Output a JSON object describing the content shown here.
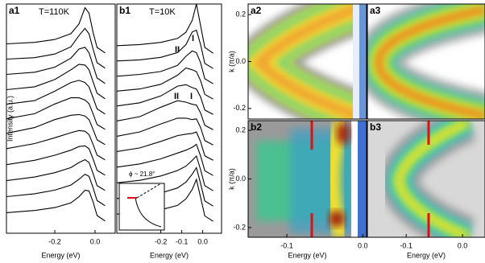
{
  "chart_data": [
    {
      "type": "line",
      "panel": "a1",
      "annotation": "T=110K",
      "annotation_color": "#e0201b",
      "color": "#000000",
      "xlabel": "Energy (eV)",
      "ylabel": "Intensity (a.u.)",
      "xlim": [
        -0.44,
        0.1
      ],
      "xticks": [
        -0.2,
        {
          "value": 0,
          "label": "0.0"
        }
      ],
      "x": [
        -0.44,
        -0.3,
        -0.2,
        -0.12,
        -0.08,
        -0.05,
        -0.03,
        -0.01,
        0.01,
        0.05
      ],
      "series": [
        {
          "values": [
            0.3,
            0.34,
            0.42,
            0.58,
            0.85,
            1.3,
            1.15,
            0.62,
            0.2,
            0.05
          ]
        },
        {
          "values": [
            0.3,
            0.34,
            0.44,
            0.64,
            0.95,
            1.15,
            1.0,
            0.58,
            0.2,
            0.05
          ]
        },
        {
          "values": [
            0.3,
            0.36,
            0.5,
            0.75,
            1.0,
            1.05,
            0.9,
            0.55,
            0.2,
            0.05
          ]
        },
        {
          "values": [
            0.3,
            0.38,
            0.58,
            0.85,
            1.0,
            0.98,
            0.85,
            0.52,
            0.2,
            0.05
          ]
        },
        {
          "values": [
            0.32,
            0.42,
            0.68,
            0.92,
            0.98,
            0.92,
            0.8,
            0.5,
            0.19,
            0.05
          ]
        },
        {
          "values": [
            0.34,
            0.48,
            0.75,
            0.92,
            0.92,
            0.86,
            0.76,
            0.48,
            0.18,
            0.05
          ]
        },
        {
          "values": [
            0.36,
            0.52,
            0.74,
            0.86,
            0.88,
            0.84,
            0.74,
            0.47,
            0.18,
            0.05
          ]
        },
        {
          "values": [
            0.36,
            0.5,
            0.66,
            0.8,
            0.86,
            0.84,
            0.75,
            0.48,
            0.18,
            0.05
          ]
        },
        {
          "values": [
            0.34,
            0.46,
            0.6,
            0.74,
            0.84,
            0.86,
            0.78,
            0.5,
            0.18,
            0.05
          ]
        },
        {
          "values": [
            0.32,
            0.42,
            0.54,
            0.68,
            0.82,
            0.9,
            0.82,
            0.52,
            0.18,
            0.05
          ]
        },
        {
          "values": [
            0.3,
            0.38,
            0.48,
            0.62,
            0.78,
            0.92,
            0.86,
            0.55,
            0.19,
            0.05
          ]
        },
        {
          "values": [
            0.28,
            0.34,
            0.42,
            0.55,
            0.72,
            0.9,
            0.88,
            0.58,
            0.2,
            0.05
          ]
        }
      ]
    },
    {
      "type": "line",
      "panel": "b1",
      "annotation": "T=10K",
      "annotation_color": "#2030d0",
      "color": "#000000",
      "xlabel": "Energy (eV)",
      "xlim": [
        -0.41,
        0.09
      ],
      "xticks": [
        -0.2,
        -0.1,
        {
          "value": 0,
          "label": "0.0"
        }
      ],
      "x": [
        -0.41,
        -0.3,
        -0.2,
        -0.12,
        -0.08,
        -0.05,
        -0.03,
        -0.01,
        0.01,
        0.05
      ],
      "markers": [
        "II",
        "I",
        "II",
        "I"
      ],
      "inset_label": "ϕ ~ 21.8°",
      "series": [
        {
          "values": [
            0.25,
            0.28,
            0.34,
            0.45,
            0.62,
            0.95,
            1.4,
            0.8,
            0.2,
            0.04
          ]
        },
        {
          "values": [
            0.25,
            0.28,
            0.35,
            0.48,
            0.7,
            1.05,
            1.1,
            0.7,
            0.18,
            0.04
          ]
        },
        {
          "values": [
            0.25,
            0.3,
            0.38,
            0.55,
            0.8,
            0.95,
            0.9,
            0.62,
            0.18,
            0.04
          ]
        },
        {
          "values": [
            0.26,
            0.32,
            0.45,
            0.7,
            0.9,
            0.85,
            0.8,
            0.55,
            0.17,
            0.04
          ]
        },
        {
          "values": [
            0.27,
            0.36,
            0.55,
            0.82,
            0.86,
            0.78,
            0.74,
            0.52,
            0.16,
            0.04
          ]
        },
        {
          "values": [
            0.28,
            0.4,
            0.66,
            0.84,
            0.8,
            0.74,
            0.72,
            0.5,
            0.16,
            0.04
          ]
        },
        {
          "values": [
            0.28,
            0.4,
            0.62,
            0.78,
            0.78,
            0.74,
            0.76,
            0.52,
            0.16,
            0.04
          ]
        },
        {
          "values": [
            0.28,
            0.38,
            0.56,
            0.72,
            0.76,
            0.78,
            0.82,
            0.55,
            0.16,
            0.04
          ]
        },
        {
          "values": [
            0.27,
            0.36,
            0.5,
            0.66,
            0.74,
            0.82,
            0.9,
            0.58,
            0.17,
            0.04
          ]
        },
        {
          "values": [
            0.26,
            0.33,
            0.45,
            0.6,
            0.72,
            0.88,
            1.0,
            0.62,
            0.18,
            0.04
          ]
        },
        {
          "values": [
            0.25,
            0.3,
            0.4,
            0.54,
            0.7,
            0.92,
            1.1,
            0.66,
            0.18,
            0.04
          ]
        },
        {
          "values": [
            0.24,
            0.28,
            0.36,
            0.48,
            0.66,
            0.92,
            1.2,
            0.7,
            0.19,
            0.04
          ]
        }
      ]
    },
    {
      "type": "heatmap",
      "panel": "a2",
      "ylabel": "k (π/a)",
      "ylim": [
        -0.245,
        0.245
      ],
      "yticks": [
        0.2,
        {
          "value": 0,
          "label": "0.0"
        },
        -0.2
      ]
    },
    {
      "type": "heatmap",
      "panel": "a3"
    },
    {
      "type": "heatmap",
      "panel": "b2",
      "ylabel": "k (π/a)",
      "xlabel": "Energy (eV)",
      "ylim": [
        -0.24,
        0.24
      ],
      "yticks": [
        0.2,
        {
          "value": 0,
          "label": "0.0"
        },
        -0.2
      ],
      "xlim": [
        -0.151,
        0.005
      ],
      "xticks": [
        -0.1,
        {
          "value": 0,
          "label": "0.0"
        }
      ]
    },
    {
      "type": "heatmap",
      "panel": "b3",
      "xlabel": "Energy (eV)",
      "xlim": [
        -0.169,
        0.04
      ],
      "xticks": [
        -0.1,
        {
          "value": 0,
          "label": "0.0"
        }
      ]
    }
  ]
}
